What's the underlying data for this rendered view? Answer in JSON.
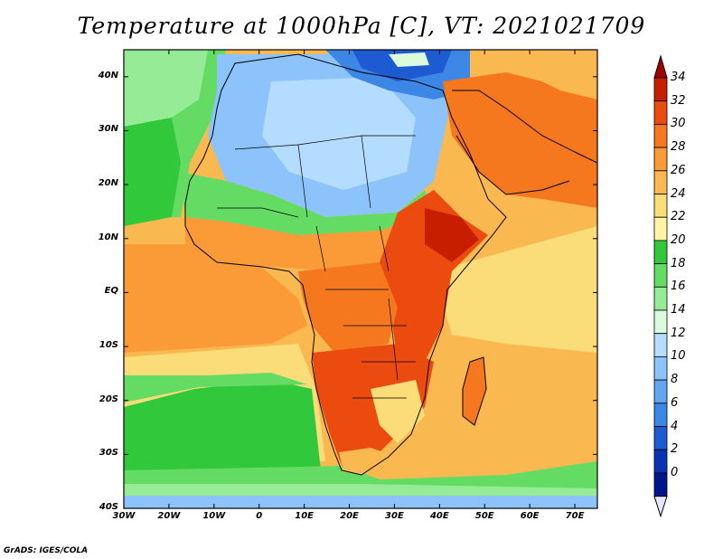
{
  "title": "Temperature at 1000hPa [C], VT: 2021021709",
  "footer": "GrADS: IGES/COLA",
  "lat_labels": [
    "40N",
    "30N",
    "20N",
    "10N",
    "EQ",
    "10S",
    "20S",
    "30S",
    "40S"
  ],
  "lat_values": [
    40,
    30,
    20,
    10,
    0,
    -10,
    -20,
    -30,
    -40
  ],
  "lon_labels": [
    "30W",
    "20W",
    "10W",
    "0",
    "10E",
    "20E",
    "30E",
    "40E",
    "50E",
    "60E",
    "70E"
  ],
  "lon_values": [
    -30,
    -20,
    -10,
    0,
    10,
    20,
    30,
    40,
    50,
    60,
    70
  ],
  "colorbar": {
    "labels": [
      "34",
      "32",
      "30",
      "28",
      "26",
      "24",
      "22",
      "20",
      "18",
      "16",
      "14",
      "12",
      "10",
      "8",
      "6",
      "4",
      "2",
      "0"
    ],
    "colors": [
      "#c81e00",
      "#eb4b0f",
      "#f5781e",
      "#fa9b37",
      "#fab950",
      "#fadc78",
      "#fff5a5",
      "#32c83c",
      "#64dc64",
      "#96eb96",
      "#dcfadc",
      "#b4dcff",
      "#8cc3fa",
      "#64a5f0",
      "#3c87e6",
      "#1e5ad2",
      "#0a32b4",
      "#00148c"
    ],
    "under_color": "#e6e6fa",
    "over_color": "#a00000"
  },
  "map": {
    "lon_range": [
      -30,
      75
    ],
    "lat_range": [
      -40,
      45
    ],
    "ocean_color": "#fab950",
    "regions": [
      {
        "name": "sahara-north-africa",
        "color": "#8cc3fa"
      },
      {
        "name": "sahel-band",
        "color": "#fa9b37"
      },
      {
        "name": "east-africa-hot",
        "color": "#eb4b0f"
      },
      {
        "name": "southern-africa-hot",
        "color": "#eb4b0f"
      },
      {
        "name": "arabia",
        "color": "#f5781e"
      },
      {
        "name": "mediterranean-cold",
        "color": "#3c87e6"
      },
      {
        "name": "south-atlantic-cool",
        "color": "#32c83c"
      },
      {
        "name": "southern-ocean-band",
        "color": "#64dc64"
      }
    ]
  }
}
